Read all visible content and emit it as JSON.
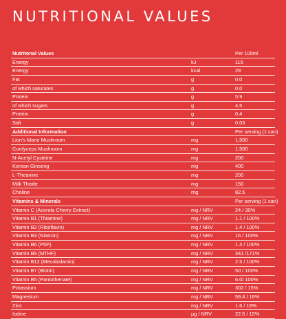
{
  "title": "NUTRITIONAL VALUES",
  "sections": [
    {
      "header": {
        "label": "Nutritonal Values",
        "unit": "",
        "value": "Per 100ml"
      },
      "rows": [
        {
          "label": "Energy",
          "unit": "kJ",
          "value": "115"
        },
        {
          "label": "Energy",
          "unit": "kcal",
          "value": "29"
        },
        {
          "label": "Fat",
          "unit": "g",
          "value": "0.0"
        },
        {
          "label": "of which saturates",
          "unit": "g",
          "value": "0.0"
        },
        {
          "label": "Protein",
          "unit": "g",
          "value": "5.9"
        },
        {
          "label": "of which sugars",
          "unit": "g",
          "value": "4.5"
        },
        {
          "label": "Protein",
          "unit": "g",
          "value": "0.4"
        },
        {
          "label": "Salt",
          "unit": "g",
          "value": "0.03"
        }
      ]
    },
    {
      "header": {
        "label": "Additional Information",
        "unit": "",
        "value": "Per serving (1 can)"
      },
      "rows": [
        {
          "label": "Lion's Mane Mushroom",
          "unit": "mg",
          "value": "1,500"
        },
        {
          "label": "Cordyceps Mushroom",
          "unit": "mg",
          "value": "1,500"
        },
        {
          "label": "N-Acetyl Cysteine",
          "unit": "mg",
          "value": "200"
        },
        {
          "label": "Korean Ginseng",
          "unit": "mg",
          "value": "400"
        },
        {
          "label": "L-Theanine",
          "unit": "mg",
          "value": "200"
        },
        {
          "label": "Milk Thistle",
          "unit": "mg",
          "value": "150"
        },
        {
          "label": "Choline",
          "unit": "mg",
          "value": "82.5"
        }
      ]
    },
    {
      "header": {
        "label": "Vitamins & Minerals",
        "unit": "",
        "value": "Per serving (1 can)"
      },
      "rows": [
        {
          "label": "Vitamin C (Acerola Cherry Extract)",
          "unit": "mg / NRV",
          "value": "24 / 30%"
        },
        {
          "label": "Vitamin B1 (Thiamine)",
          "unit": "mg / NRV",
          "value": "1.1 / 100%"
        },
        {
          "label": "Vitamin B2 (Riboflavin)",
          "unit": "mg / NRV",
          "value": "1.4 / 100%"
        },
        {
          "label": "Vitamin B3 (Niancin)",
          "unit": "mg / NRV",
          "value": "16 / 100%"
        },
        {
          "label": "Vitamin B6 (P5P)",
          "unit": "mg / NRV",
          "value": "1.4 / 100%"
        },
        {
          "label": "Vitamin B9 (MTHF)",
          "unit": "mg / NRV",
          "value": "341 /171%"
        },
        {
          "label": "Vitamin B12 (Mecobalamin)",
          "unit": "mg / NRV",
          "value": "2.5 / 100%"
        },
        {
          "label": "Vitamin B7 (Biotin)",
          "unit": "mg / NRV",
          "value": "50 / 100%"
        },
        {
          "label": "Vitamin B5 (Pantothenate)",
          "unit": "mg / NRV",
          "value": "6.0/ 100%"
        },
        {
          "label": "Potassium",
          "unit": "mg / NRV",
          "value": "302 / 15%"
        },
        {
          "label": "Magnesium",
          "unit": "mg / NRV",
          "value": "59.4 / 16%"
        },
        {
          "label": "Zinc",
          "unit": "mg / NRV",
          "value": "1.6 / 16%"
        },
        {
          "label": "Iodine",
          "unit": "μg / NRV",
          "value": "22.5 / 15%"
        }
      ]
    }
  ]
}
